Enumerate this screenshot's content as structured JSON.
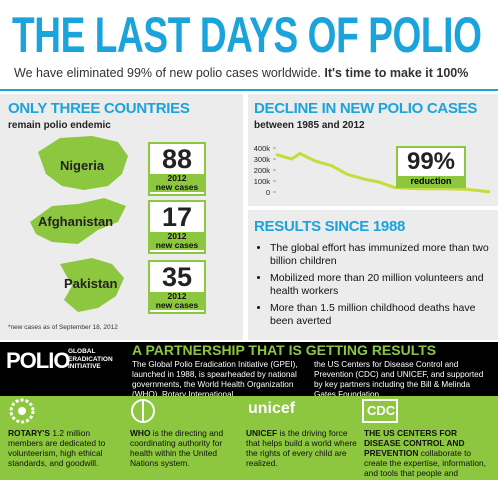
{
  "header": {
    "title": "THE LAST DAYS OF POLIO",
    "subtitle": "We have eliminated 99% of new polio cases worldwide.",
    "subtitle_emphasis": "It's time to make it 100%"
  },
  "countries": {
    "heading": "ONLY THREE COUNTRIES",
    "subheading": "remain polio endemic",
    "items": [
      {
        "name": "Nigeria",
        "cases": 88,
        "year": "2012",
        "label": "new cases"
      },
      {
        "name": "Afghanistan",
        "cases": 17,
        "year": "2012",
        "label": "new cases"
      },
      {
        "name": "Pakistan",
        "cases": 35,
        "year": "2012",
        "label": "new cases"
      }
    ],
    "footnote": "*new cases as of September 18, 2012"
  },
  "decline": {
    "heading": "DECLINE IN NEW POLIO CASES",
    "subheading": "between 1985 and 2012",
    "reduction": "99%",
    "reduction_label": "reduction",
    "chart": {
      "type": "line",
      "color": "#c5dc3a",
      "x": [
        1985,
        1987,
        1988,
        1990,
        1992,
        1994,
        1996,
        1998,
        2000,
        2003,
        2006,
        2009,
        2012
      ],
      "values": [
        340000,
        300000,
        350000,
        280000,
        240000,
        160000,
        120000,
        90000,
        40000,
        30000,
        30000,
        25000,
        1000
      ],
      "xlim": [
        1985,
        2012
      ],
      "ylim": [
        0,
        400000
      ],
      "yticks": [
        {
          "value": 0,
          "label": "0"
        },
        {
          "value": 100000,
          "label": "100k"
        },
        {
          "value": 200000,
          "label": "200k"
        },
        {
          "value": 300000,
          "label": "300k"
        },
        {
          "value": 400000,
          "label": "400k"
        }
      ]
    }
  },
  "results": {
    "heading": "RESULTS SINCE 1988",
    "items": [
      "The global effort has immunized more than two billion children",
      "Mobilized more than 20 million volunteers and health workers",
      "More than 1.5 million childhood deaths have been averted"
    ]
  },
  "partnership": {
    "logo": "POLIO",
    "logo_lines": [
      "GLOBAL",
      "ERADICATION",
      "INITIATIVE"
    ],
    "heading": "A PARTNERSHIP THAT IS GETTING RESULTS",
    "columns": [
      "The Global Polio Eradication Initiative (GPEI), launched in 1988, is spearheaded by national governments, the World Health Organization (WHO), Rotary International,",
      "the US Centers for Disease Control and Prevention (CDC) and UNICEF, and supported by key partners including the Bill & Melinda Gates Foundation."
    ]
  },
  "partners": [
    {
      "name": "ROTARY'S",
      "text": "1.2 million members are dedicated to volunteerism, high ethical standards, and goodwill."
    },
    {
      "logo": "unicef",
      "name": "UNICEF",
      "text": "is the driving force that helps build a world where the rights of every child are realized."
    },
    {
      "name": "WHO",
      "text": "is the directing and coordinating authority for health within the United Nations system."
    },
    {
      "logo": "CDC",
      "name": "THE US CENTERS FOR DISEASE CONTROL AND PREVENTION",
      "text": "collaborate to create the expertise, information, and tools that people and communities need to protect their health."
    }
  ]
}
